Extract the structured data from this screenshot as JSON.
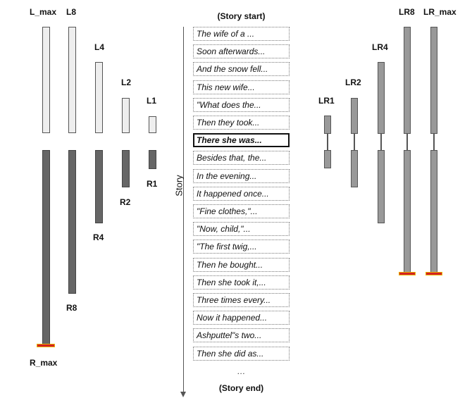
{
  "labels": {
    "l_max": "L_max",
    "l8": "L8",
    "l4": "L4",
    "l2": "L2",
    "l1": "L1",
    "r1": "R1",
    "r2": "R2",
    "r4": "R4",
    "r8": "R8",
    "r_max": "R_max",
    "lr1": "LR1",
    "lr2": "LR2",
    "lr4": "LR4",
    "lr8": "LR8",
    "lr_max": "LR_max"
  },
  "story": {
    "start": "(Story start)",
    "end": "(Story end)",
    "axis_label": "Story",
    "ellipsis": "…",
    "current_index": 6,
    "segments": [
      "The wife of a ...",
      "Soon afterwards...",
      "And the snow fell...",
      "This new wife...",
      "\"What does the...",
      "Then they took...",
      "There she was...",
      "Besides that, the...",
      "In the evening...",
      "It happened once...",
      "\"Fine clothes,\"...",
      "\"Now, child,\"...",
      "\"The first twig,...",
      "Then he bought...",
      "Then she took it,...",
      "Three times every...",
      "Now it happened...",
      "Ashputtel\"s two...",
      "Then she did as..."
    ]
  },
  "colors": {
    "left_context": "#eeeeee",
    "right_context": "#666666",
    "bidirectional_context": "#999999",
    "limit_marker": "#d42222",
    "limit_marker_border": "#e8b300"
  }
}
